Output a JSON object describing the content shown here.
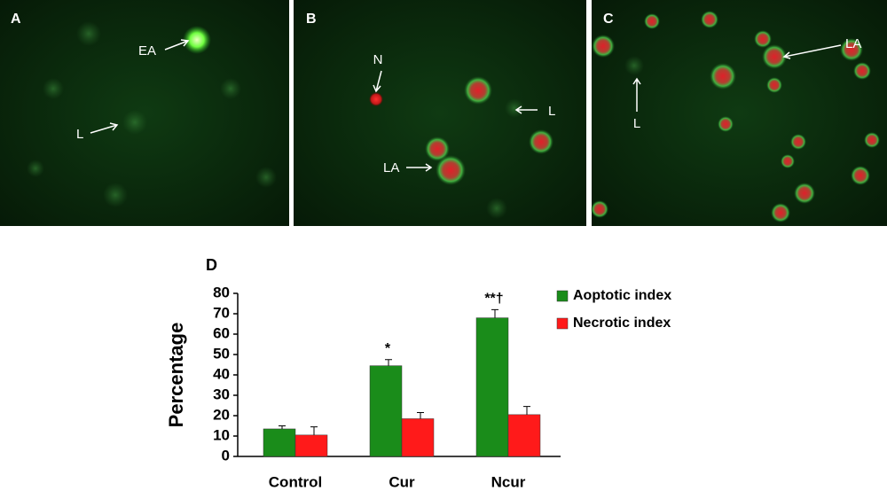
{
  "panels": [
    {
      "label": "A",
      "annotations": [
        "EA",
        "L"
      ]
    },
    {
      "label": "B",
      "annotations": [
        "N",
        "L",
        "LA"
      ]
    },
    {
      "label": "C",
      "annotations": [
        "LA",
        "L"
      ]
    }
  ],
  "chart_data": {
    "type": "bar",
    "panel_label": "D",
    "y_label": "Percentage",
    "categories": [
      "Control",
      "Cur",
      "Ncur"
    ],
    "series": [
      {
        "name": "Aoptotic index",
        "color": "#1a8c1a",
        "values": [
          13.5,
          44.5,
          68
        ],
        "errors": [
          1.5,
          3,
          4
        ]
      },
      {
        "name": "Necrotic index",
        "color": "#ff1a1a",
        "values": [
          10.5,
          18.5,
          20.5
        ],
        "errors": [
          4,
          3,
          4
        ]
      }
    ],
    "significance": [
      null,
      "*",
      "**†"
    ],
    "ylim": [
      0,
      80
    ],
    "yticks": [
      0,
      10,
      20,
      30,
      40,
      50,
      60,
      70,
      80
    ],
    "legend": "right"
  }
}
